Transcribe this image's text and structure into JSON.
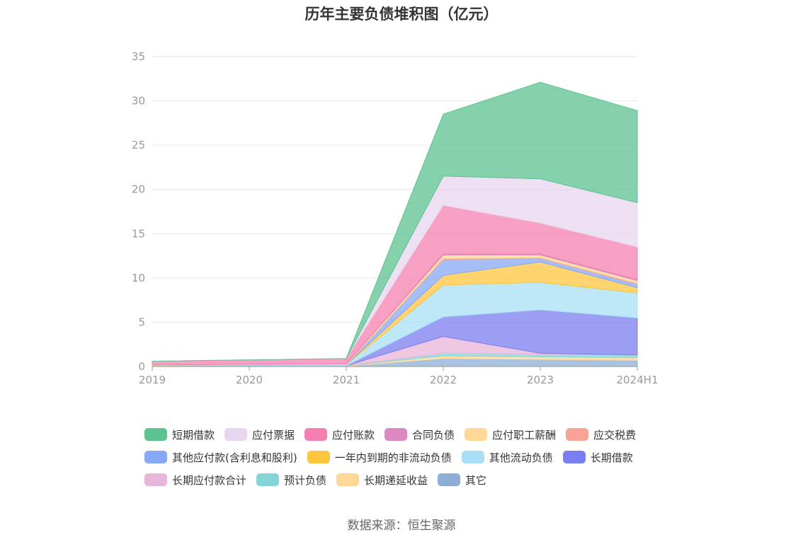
{
  "title": "历年主要负债堆积图（亿元）",
  "source": "数据来源：恒生聚源",
  "chart_data": {
    "type": "area",
    "stacked": true,
    "categories": [
      "2019",
      "2020",
      "2021",
      "2022",
      "2023",
      "2024H1"
    ],
    "ylim": [
      0,
      35
    ],
    "yticks": [
      0,
      5,
      10,
      15,
      20,
      25,
      30,
      35
    ],
    "grid": true,
    "legend_position": "bottom",
    "series": [
      {
        "name": "其它",
        "color": "#8eaed8",
        "values": [
          0.05,
          0.05,
          0.05,
          0.9,
          0.8,
          0.7
        ]
      },
      {
        "name": "长期递延收益",
        "color": "#ffd898",
        "values": [
          0.05,
          0.05,
          0.05,
          0.3,
          0.3,
          0.3
        ]
      },
      {
        "name": "预计负债",
        "color": "#85d4d8",
        "values": [
          0.0,
          0.0,
          0.0,
          0.3,
          0.3,
          0.3
        ]
      },
      {
        "name": "长期应付款合计",
        "color": "#e8b6d8",
        "values": [
          0.0,
          0.0,
          0.0,
          1.9,
          0.1,
          0.0
        ]
      },
      {
        "name": "长期借款",
        "color": "#7b7ef0",
        "values": [
          0.0,
          0.0,
          0.0,
          2.2,
          4.9,
          4.2
        ]
      },
      {
        "name": "其他流动负债",
        "color": "#a8dff5",
        "values": [
          0.05,
          0.1,
          0.1,
          3.6,
          3.1,
          2.8
        ]
      },
      {
        "name": "一年内到期的非流动负债",
        "color": "#ffc53d",
        "values": [
          0.0,
          0.0,
          0.0,
          1.1,
          2.3,
          0.6
        ]
      },
      {
        "name": "其他应付款(含利息和股利)",
        "color": "#87a8f5",
        "values": [
          0.0,
          0.0,
          0.0,
          1.8,
          0.4,
          0.4
        ]
      },
      {
        "name": "应交税费",
        "color": "#f7a398",
        "values": [
          0.0,
          0.0,
          0.0,
          0.1,
          0.1,
          0.1
        ]
      },
      {
        "name": "应付职工薪酬",
        "color": "#ffd898",
        "values": [
          0.05,
          0.05,
          0.1,
          0.4,
          0.3,
          0.3
        ]
      },
      {
        "name": "合同负债",
        "color": "#dd88c0",
        "values": [
          0.0,
          0.0,
          0.0,
          0.1,
          0.1,
          0.1
        ]
      },
      {
        "name": "应付账款",
        "color": "#f57fb0",
        "values": [
          0.4,
          0.5,
          0.6,
          5.5,
          3.5,
          3.7
        ]
      },
      {
        "name": "应付票据",
        "color": "#e6d6ee",
        "values": [
          0.0,
          0.0,
          0.0,
          3.3,
          5.0,
          5.0
        ]
      },
      {
        "name": "短期借款",
        "color": "#5cc290",
        "values": [
          0.0,
          0.0,
          0.0,
          7.0,
          10.9,
          10.4
        ]
      }
    ]
  },
  "legend": [
    {
      "label": "短期借款",
      "color": "#5cc290"
    },
    {
      "label": "应付票据",
      "color": "#e6d6ee"
    },
    {
      "label": "应付账款",
      "color": "#f57fb0"
    },
    {
      "label": "合同负债",
      "color": "#dd88c0"
    },
    {
      "label": "应付职工薪酬",
      "color": "#ffd898"
    },
    {
      "label": "应交税费",
      "color": "#f7a398"
    },
    {
      "label": "其他应付款(含利息和股利)",
      "color": "#87a8f5"
    },
    {
      "label": "一年内到期的非流动负债",
      "color": "#ffc53d"
    },
    {
      "label": "其他流动负债",
      "color": "#a8dff5"
    },
    {
      "label": "长期借款",
      "color": "#7b7ef0"
    },
    {
      "label": "长期应付款合计",
      "color": "#e8b6d8"
    },
    {
      "label": "预计负债",
      "color": "#85d4d8"
    },
    {
      "label": "长期递延收益",
      "color": "#ffd898"
    },
    {
      "label": "其它",
      "color": "#8eaed8"
    }
  ]
}
